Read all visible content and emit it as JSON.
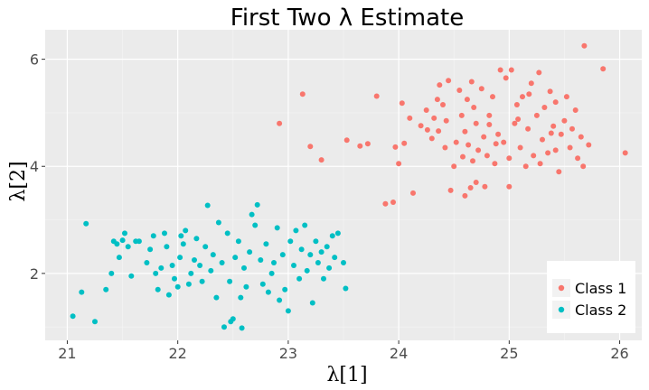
{
  "chart_data": {
    "type": "scatter",
    "title": "First Two λ Estimate",
    "xlabel": "λ[1]",
    "ylabel": "λ[2]",
    "xlim": [
      20.8,
      26.2
    ],
    "ylim": [
      0.75,
      6.55
    ],
    "x_ticks": [
      21,
      22,
      23,
      24,
      25,
      26
    ],
    "x_tick_labels": [
      "21",
      "22",
      "23",
      "24",
      "25",
      "26"
    ],
    "y_ticks": [
      2,
      4,
      6
    ],
    "y_tick_labels": [
      "2",
      "4",
      "6"
    ],
    "grid": true,
    "legend_position": "bottom-right",
    "series": [
      {
        "name": "Class 1",
        "color": "#F8766D",
        "points": [
          [
            22.92,
            4.8
          ],
          [
            23.13,
            5.35
          ],
          [
            23.2,
            4.37
          ],
          [
            23.3,
            4.12
          ],
          [
            23.53,
            4.49
          ],
          [
            23.65,
            4.38
          ],
          [
            23.72,
            4.42
          ],
          [
            23.8,
            5.31
          ],
          [
            23.88,
            3.3
          ],
          [
            23.95,
            3.33
          ],
          [
            23.97,
            4.36
          ],
          [
            24.0,
            4.05
          ],
          [
            24.03,
            5.18
          ],
          [
            24.05,
            4.43
          ],
          [
            24.1,
            4.9
          ],
          [
            24.13,
            3.5
          ],
          [
            24.2,
            4.76
          ],
          [
            24.25,
            5.05
          ],
          [
            24.3,
            4.52
          ],
          [
            24.32,
            4.9
          ],
          [
            24.35,
            5.25
          ],
          [
            24.37,
            5.52
          ],
          [
            24.4,
            5.15
          ],
          [
            24.42,
            4.35
          ],
          [
            24.43,
            4.85
          ],
          [
            24.45,
            5.6
          ],
          [
            24.47,
            3.55
          ],
          [
            24.5,
            4.0
          ],
          [
            24.52,
            4.45
          ],
          [
            24.55,
            5.42
          ],
          [
            24.57,
            4.95
          ],
          [
            24.6,
            3.45
          ],
          [
            24.6,
            4.65
          ],
          [
            24.62,
            5.25
          ],
          [
            24.63,
            4.4
          ],
          [
            24.65,
            3.6
          ],
          [
            24.67,
            4.1
          ],
          [
            24.68,
            5.1
          ],
          [
            24.7,
            4.8
          ],
          [
            24.7,
            3.7
          ],
          [
            24.72,
            4.3
          ],
          [
            24.75,
            5.45
          ],
          [
            24.77,
            4.55
          ],
          [
            24.8,
            4.2
          ],
          [
            24.82,
            4.95
          ],
          [
            24.85,
            5.3
          ],
          [
            24.87,
            4.05
          ],
          [
            24.9,
            4.6
          ],
          [
            24.92,
            5.8
          ],
          [
            24.95,
            4.45
          ],
          [
            24.97,
            5.65
          ],
          [
            25.0,
            4.15
          ],
          [
            25.02,
            5.8
          ],
          [
            25.05,
            4.8
          ],
          [
            25.07,
            5.15
          ],
          [
            25.1,
            4.35
          ],
          [
            25.12,
            5.3
          ],
          [
            25.15,
            4.0
          ],
          [
            25.17,
            4.7
          ],
          [
            25.2,
            5.55
          ],
          [
            25.22,
            4.2
          ],
          [
            25.25,
            4.95
          ],
          [
            25.27,
            5.75
          ],
          [
            25.3,
            4.5
          ],
          [
            25.32,
            5.1
          ],
          [
            25.35,
            4.25
          ],
          [
            25.37,
            5.4
          ],
          [
            25.4,
            4.75
          ],
          [
            25.42,
            5.2
          ],
          [
            25.45,
            3.9
          ],
          [
            25.47,
            4.6
          ],
          [
            25.5,
            4.85
          ],
          [
            25.52,
            5.3
          ],
          [
            25.55,
            4.35
          ],
          [
            25.57,
            4.7
          ],
          [
            25.6,
            5.05
          ],
          [
            25.62,
            4.15
          ],
          [
            25.65,
            4.55
          ],
          [
            25.67,
            4.0
          ],
          [
            25.68,
            6.25
          ],
          [
            25.72,
            4.4
          ],
          [
            25.85,
            5.82
          ],
          [
            26.05,
            4.25
          ],
          [
            24.58,
            4.18
          ],
          [
            24.78,
            3.62
          ],
          [
            24.88,
            4.42
          ],
          [
            25.08,
            4.88
          ],
          [
            25.28,
            4.05
          ],
          [
            25.38,
            4.62
          ],
          [
            24.36,
            4.66
          ],
          [
            24.66,
            5.58
          ],
          [
            24.82,
            4.78
          ],
          [
            25.18,
            5.35
          ],
          [
            25.42,
            4.3
          ],
          [
            25.0,
            3.62
          ],
          [
            24.26,
            4.68
          ]
        ]
      },
      {
        "name": "Class 2",
        "color": "#00BFC4",
        "points": [
          [
            21.05,
            1.2
          ],
          [
            21.13,
            1.65
          ],
          [
            21.17,
            2.93
          ],
          [
            21.25,
            1.1
          ],
          [
            21.35,
            1.7
          ],
          [
            21.4,
            2.0
          ],
          [
            21.42,
            2.6
          ],
          [
            21.45,
            2.55
          ],
          [
            21.47,
            2.3
          ],
          [
            21.5,
            2.62
          ],
          [
            21.52,
            2.75
          ],
          [
            21.55,
            2.5
          ],
          [
            21.58,
            1.95
          ],
          [
            21.62,
            2.6
          ],
          [
            21.65,
            2.6
          ],
          [
            21.75,
            2.45
          ],
          [
            21.78,
            2.7
          ],
          [
            21.8,
            2.0
          ],
          [
            21.82,
            1.7
          ],
          [
            21.85,
            2.1
          ],
          [
            21.88,
            2.75
          ],
          [
            21.9,
            2.5
          ],
          [
            21.92,
            1.6
          ],
          [
            21.95,
            2.15
          ],
          [
            21.97,
            1.9
          ],
          [
            22.0,
            1.75
          ],
          [
            22.02,
            2.3
          ],
          [
            22.05,
            2.55
          ],
          [
            22.07,
            2.8
          ],
          [
            22.1,
            1.8
          ],
          [
            22.12,
            2.0
          ],
          [
            22.15,
            2.25
          ],
          [
            22.17,
            2.65
          ],
          [
            22.2,
            2.15
          ],
          [
            22.22,
            1.85
          ],
          [
            22.25,
            2.5
          ],
          [
            22.27,
            3.27
          ],
          [
            22.3,
            2.05
          ],
          [
            22.32,
            2.35
          ],
          [
            22.35,
            1.55
          ],
          [
            22.37,
            2.95
          ],
          [
            22.4,
            2.2
          ],
          [
            22.42,
            1.0
          ],
          [
            22.45,
            2.75
          ],
          [
            22.47,
            1.85
          ],
          [
            22.5,
            1.15
          ],
          [
            22.52,
            2.3
          ],
          [
            22.55,
            2.6
          ],
          [
            22.57,
            1.55
          ],
          [
            22.6,
            2.1
          ],
          [
            22.62,
            1.75
          ],
          [
            22.65,
            2.4
          ],
          [
            22.67,
            3.1
          ],
          [
            22.7,
            2.9
          ],
          [
            22.72,
            3.28
          ],
          [
            22.75,
            2.25
          ],
          [
            22.77,
            1.8
          ],
          [
            22.8,
            2.55
          ],
          [
            22.82,
            1.65
          ],
          [
            22.85,
            2.0
          ],
          [
            22.87,
            2.2
          ],
          [
            22.9,
            2.85
          ],
          [
            22.92,
            1.5
          ],
          [
            22.95,
            2.35
          ],
          [
            22.97,
            1.7
          ],
          [
            23.0,
            1.3
          ],
          [
            23.02,
            2.6
          ],
          [
            23.05,
            2.15
          ],
          [
            23.07,
            2.8
          ],
          [
            23.1,
            1.9
          ],
          [
            23.12,
            2.45
          ],
          [
            23.15,
            2.9
          ],
          [
            23.17,
            2.05
          ],
          [
            23.2,
            2.35
          ],
          [
            23.22,
            1.45
          ],
          [
            23.25,
            2.6
          ],
          [
            23.27,
            2.2
          ],
          [
            23.3,
            2.4
          ],
          [
            23.32,
            1.9
          ],
          [
            23.35,
            2.5
          ],
          [
            23.37,
            2.1
          ],
          [
            23.4,
            2.7
          ],
          [
            23.42,
            2.3
          ],
          [
            23.45,
            2.75
          ],
          [
            23.5,
            2.2
          ],
          [
            23.52,
            1.72
          ],
          [
            22.48,
            1.1
          ],
          [
            22.58,
            0.98
          ],
          [
            22.03,
            2.7
          ],
          [
            21.72,
            2.2
          ]
        ]
      }
    ]
  }
}
